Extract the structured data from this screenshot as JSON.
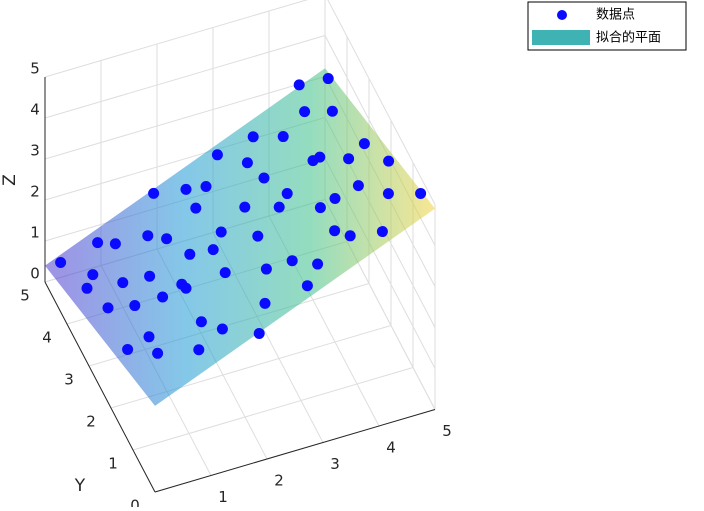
{
  "chart_data": {
    "type": "scatter3d",
    "ylabel": "Y",
    "zlabel": "Z",
    "xlim": [
      0,
      5
    ],
    "ylim": [
      0,
      5
    ],
    "zlim": [
      0,
      5
    ],
    "xticks": [
      0,
      1,
      2,
      3,
      4,
      5
    ],
    "yticks": [
      0,
      1,
      2,
      3,
      4,
      5
    ],
    "zticks": [
      0,
      1,
      2,
      3,
      4,
      5
    ],
    "grid": true,
    "legend": "top-right",
    "series": [
      {
        "name": "数据点",
        "color": "#0a0aff",
        "x": [
          0.2,
          0.5,
          0.8,
          1.1,
          0.3,
          0.6,
          0.4,
          0.9,
          1.3,
          1.5,
          1.7,
          1.9,
          2.2,
          2.0,
          2.4,
          2.6,
          2.8,
          3.0,
          3.2,
          3.4,
          3.6,
          3.8,
          4.0,
          4.2,
          4.4,
          4.6,
          4.8,
          4.9,
          4.7,
          4.5,
          1.0,
          1.4,
          1.8,
          2.3,
          2.7,
          3.1,
          3.5,
          3.9,
          4.3,
          4.1,
          0.1,
          0.7,
          1.2,
          1.6,
          2.1,
          2.5,
          2.9,
          3.3,
          3.7,
          4.0,
          0.2,
          4.8,
          3.0,
          1.9,
          4.4,
          2.4,
          0.9,
          3.6,
          1.3,
          4.9
        ],
        "y": [
          4.8,
          4.1,
          3.5,
          4.6,
          2.9,
          1.8,
          0.9,
          0.3,
          1.2,
          2.6,
          3.8,
          4.9,
          0.6,
          1.9,
          3.1,
          4.3,
          0.2,
          1.4,
          2.5,
          3.7,
          4.7,
          0.8,
          2.0,
          3.2,
          4.4,
          1.1,
          2.7,
          0.4,
          3.9,
          4.9,
          2.2,
          0.5,
          3.0,
          4.0,
          2.2,
          0.5,
          2.9,
          4.1,
          1.7,
          0.1,
          1.5,
          2.7,
          3.3,
          4.4,
          2.7,
          1.3,
          3.3,
          4.2,
          1.9,
          3.0,
          3.6,
          1.6,
          4.8,
          0.1,
          2.4,
          4.7,
          4.9,
          1.0,
          1.9,
          4.6
        ],
        "z": [
          0.6,
          0.9,
          1.2,
          0.9,
          1.4,
          1.7,
          2.3,
          2.8,
          2.4,
          1.8,
          1.6,
          1.5,
          3.1,
          2.6,
          2.2,
          2.0,
          3.7,
          3.0,
          3.1,
          2.5,
          2.4,
          3.9,
          3.5,
          3.2,
          3.0,
          4.3,
          3.8,
          4.9,
          3.4,
          3.1,
          2.1,
          2.9,
          2.0,
          1.9,
          2.9,
          3.8,
          2.9,
          2.9,
          4.0,
          4.6,
          1.9,
          1.5,
          1.4,
          1.1,
          2.3,
          3.1,
          2.4,
          2.4,
          3.5,
          3.4,
          1.2,
          4.5,
          2.1,
          3.0,
          3.9,
          1.6,
          0.7,
          3.9,
          2.5,
          3.4
        ]
      },
      {
        "name": "拟合的平面",
        "color": "#3fb3b3",
        "x": [
          0,
          5
        ],
        "y": [
          0,
          5
        ],
        "z": [
          [
            2.1,
            0.4
          ],
          [
            4.9,
            3.2
          ]
        ],
        "colormap": [
          "#4a3fd0",
          "#1f9ad6",
          "#3cc08a",
          "#f2d23a"
        ],
        "opacity": 0.55
      }
    ]
  }
}
